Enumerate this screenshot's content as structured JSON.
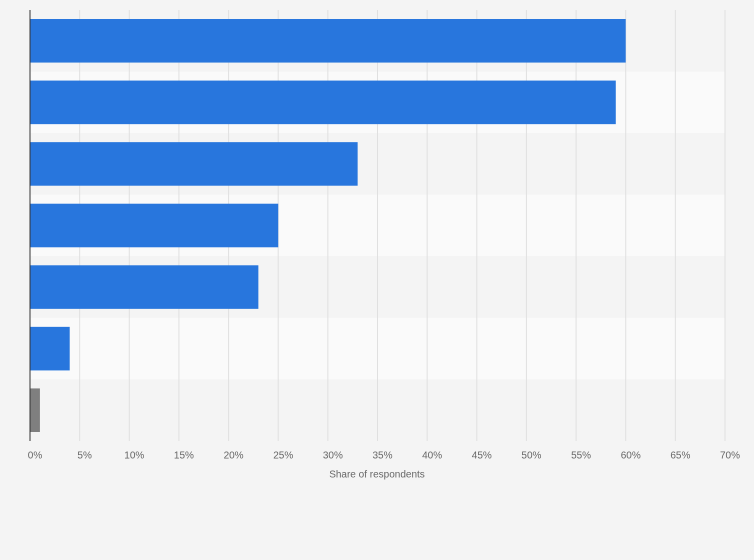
{
  "chart_data": {
    "type": "hbar",
    "categories": [
      null,
      null,
      null,
      null,
      null,
      null,
      null
    ],
    "values": [
      60,
      59,
      33,
      25,
      23,
      4,
      1
    ],
    "colors": [
      "#2876dd",
      "#2876dd",
      "#2876dd",
      "#2876dd",
      "#2876dd",
      "#2876dd",
      "#7f7f7f"
    ],
    "xlabel": "Share of respondents",
    "xlim": [
      0,
      70
    ],
    "xticks": [
      {
        "value": 0,
        "label": "0%"
      },
      {
        "value": 5,
        "label": "5%"
      },
      {
        "value": 10,
        "label": "10%"
      },
      {
        "value": 15,
        "label": "15%"
      },
      {
        "value": 20,
        "label": "20%"
      },
      {
        "value": 25,
        "label": "25%"
      },
      {
        "value": 30,
        "label": "30%"
      },
      {
        "value": 35,
        "label": "35%"
      },
      {
        "value": 40,
        "label": "40%"
      },
      {
        "value": 45,
        "label": "45%"
      },
      {
        "value": 50,
        "label": "50%"
      },
      {
        "value": 55,
        "label": "55%"
      },
      {
        "value": 60,
        "label": "60%"
      },
      {
        "value": 65,
        "label": "65%"
      },
      {
        "value": 70,
        "label": "70%"
      }
    ],
    "grid": true
  }
}
